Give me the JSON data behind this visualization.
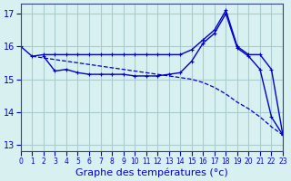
{
  "bg_color": "#d8f0f0",
  "grid_color": "#aacccc",
  "line_color": "#0000cc",
  "xlabel": "Graphe des températures (°c)",
  "xlabel_fontsize": 8,
  "yticks": [
    13,
    14,
    15,
    16,
    17
  ],
  "xticks": [
    0,
    1,
    2,
    3,
    4,
    5,
    6,
    7,
    8,
    9,
    10,
    11,
    12,
    13,
    14,
    15,
    16,
    17,
    18,
    19,
    20,
    21,
    22,
    23
  ],
  "xlim": [
    0,
    23
  ],
  "ylim": [
    12.8,
    17.3
  ],
  "line1_x": [
    0,
    1,
    2,
    3,
    4,
    5,
    6,
    7,
    8,
    9,
    10,
    11,
    12,
    13,
    14,
    15,
    16,
    17,
    18,
    19,
    20,
    21,
    22,
    23
  ],
  "line1_y": [
    16.0,
    15.7,
    15.75,
    15.75,
    15.75,
    15.75,
    15.75,
    15.75,
    15.75,
    15.75,
    15.75,
    15.75,
    15.75,
    15.75,
    15.75,
    15.9,
    16.2,
    16.5,
    17.1,
    16.0,
    15.75,
    15.75,
    15.3,
    13.3
  ],
  "line2_x": [
    2,
    3,
    4,
    5,
    6,
    7,
    8,
    9,
    10,
    11,
    12,
    13,
    14,
    15,
    16,
    17,
    18,
    19,
    20,
    21,
    22,
    23
  ],
  "line2_y": [
    15.7,
    15.25,
    15.3,
    15.2,
    15.15,
    15.15,
    15.15,
    15.15,
    15.1,
    15.1,
    15.1,
    15.15,
    15.2,
    15.55,
    16.1,
    16.4,
    17.0,
    15.95,
    15.7,
    15.3,
    13.85,
    13.3
  ],
  "line3_x": [
    1,
    2,
    3,
    4,
    5,
    6,
    7,
    8,
    9,
    10,
    11,
    12,
    13,
    14,
    15,
    16,
    17,
    18,
    19,
    20,
    21,
    22,
    23
  ],
  "line3_y": [
    15.7,
    15.65,
    15.6,
    15.55,
    15.5,
    15.45,
    15.4,
    15.35,
    15.3,
    15.25,
    15.2,
    15.15,
    15.1,
    15.05,
    15.0,
    14.9,
    14.75,
    14.55,
    14.3,
    14.1,
    13.85,
    13.55,
    13.3
  ]
}
